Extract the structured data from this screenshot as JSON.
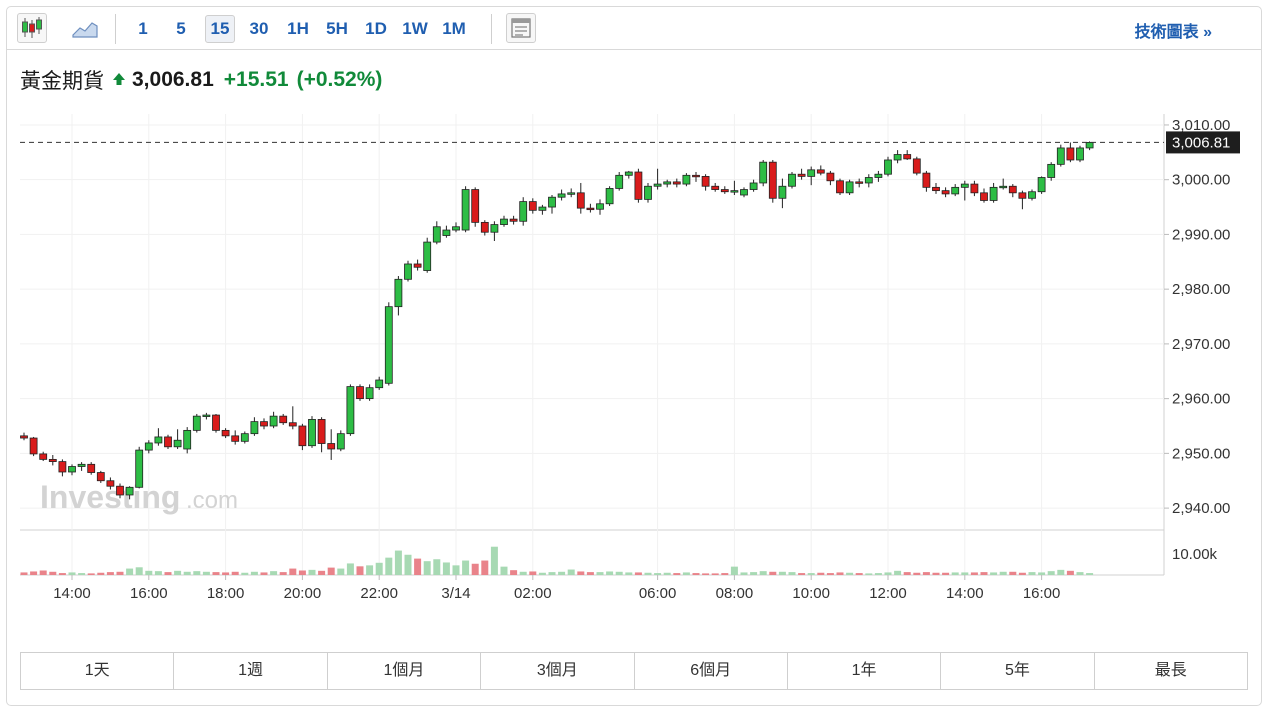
{
  "toolbar": {
    "icons": [
      "candlestick-icon",
      "area-chart-icon",
      "layout-icon"
    ],
    "timeframes": [
      "1",
      "5",
      "15",
      "30",
      "1H",
      "5H",
      "1D",
      "1W",
      "1M"
    ],
    "active_timeframe": "15",
    "tech_link": "技術圖表 »"
  },
  "quote": {
    "name": "黃金期貨",
    "direction": "up",
    "price": "3,006.81",
    "change": "+15.51",
    "change_pct": "(+0.52%)"
  },
  "watermark": {
    "main": "Investing",
    "suffix": ".com"
  },
  "colors": {
    "up": "#2dbd45",
    "down": "#d91c1c",
    "vol_up": "#a7d9b3",
    "vol_down": "#e9838a",
    "link": "#1f5eb0",
    "change": "#118a3a"
  },
  "chart_data": {
    "type": "candlestick",
    "interval": "15",
    "ylim": [
      2936,
      3012
    ],
    "y_ticks": [
      3010,
      3000,
      2990,
      2980,
      2970,
      2960,
      2950,
      2940
    ],
    "y_tick_labels": [
      "3,010.00",
      "3,000.00",
      "2,990.00",
      "2,980.00",
      "2,970.00",
      "2,960.00",
      "2,950.00",
      "2,940.00"
    ],
    "last_price": 3006.81,
    "last_price_label": "3,006.81",
    "x_tick_labels": [
      "14:00",
      "16:00",
      "18:00",
      "20:00",
      "22:00",
      "3/14",
      "02:00",
      "06:00",
      "08:00",
      "10:00",
      "12:00",
      "14:00",
      "16:00"
    ],
    "x_tick_index": [
      5,
      13,
      21,
      29,
      37,
      45,
      53,
      66,
      74,
      82,
      90,
      98,
      106
    ],
    "volume_label": "10.00k",
    "volume_max": 14000,
    "candles": [
      [
        2953.2,
        2953.8,
        2952.4,
        2952.8
      ],
      [
        2952.8,
        2953.0,
        2949.5,
        2949.9
      ],
      [
        2949.9,
        2950.3,
        2948.6,
        2948.9
      ],
      [
        2948.9,
        2949.7,
        2947.8,
        2948.5
      ],
      [
        2948.5,
        2948.9,
        2945.8,
        2946.6
      ],
      [
        2946.6,
        2948.0,
        2946.0,
        2947.6
      ],
      [
        2947.6,
        2948.4,
        2946.8,
        2948.0
      ],
      [
        2948.0,
        2948.4,
        2946.1,
        2946.5
      ],
      [
        2946.5,
        2946.8,
        2944.6,
        2945.0
      ],
      [
        2945.0,
        2945.6,
        2943.4,
        2944.0
      ],
      [
        2944.0,
        2944.5,
        2941.8,
        2942.4
      ],
      [
        2942.4,
        2944.0,
        2941.6,
        2943.8
      ],
      [
        2943.8,
        2951.2,
        2943.6,
        2950.6
      ],
      [
        2950.6,
        2952.4,
        2950.0,
        2951.9
      ],
      [
        2951.9,
        2954.6,
        2951.4,
        2953.0
      ],
      [
        2953.0,
        2953.4,
        2950.8,
        2951.2
      ],
      [
        2951.2,
        2954.4,
        2950.8,
        2952.4
      ],
      [
        2950.8,
        2954.8,
        2950.0,
        2954.2
      ],
      [
        2954.2,
        2957.2,
        2953.8,
        2956.8
      ],
      [
        2956.8,
        2957.4,
        2956.2,
        2957.0
      ],
      [
        2957.0,
        2957.2,
        2953.8,
        2954.2
      ],
      [
        2954.2,
        2954.6,
        2952.8,
        2953.2
      ],
      [
        2953.2,
        2954.2,
        2951.6,
        2952.2
      ],
      [
        2952.2,
        2954.0,
        2951.8,
        2953.6
      ],
      [
        2953.6,
        2956.6,
        2953.2,
        2955.8
      ],
      [
        2955.8,
        2956.4,
        2954.4,
        2955.0
      ],
      [
        2955.0,
        2957.6,
        2954.6,
        2956.8
      ],
      [
        2956.8,
        2957.2,
        2955.2,
        2955.6
      ],
      [
        2955.6,
        2958.6,
        2954.4,
        2955.0
      ],
      [
        2955.0,
        2955.4,
        2950.6,
        2951.4
      ],
      [
        2951.4,
        2956.8,
        2951.0,
        2956.2
      ],
      [
        2956.2,
        2956.6,
        2950.2,
        2951.8
      ],
      [
        2951.8,
        2954.4,
        2948.8,
        2950.8
      ],
      [
        2950.8,
        2954.2,
        2950.4,
        2953.6
      ],
      [
        2953.6,
        2962.6,
        2953.2,
        2962.2
      ],
      [
        2962.2,
        2962.6,
        2959.6,
        2960.0
      ],
      [
        2960.0,
        2962.6,
        2959.6,
        2962.0
      ],
      [
        2962.0,
        2964.0,
        2961.6,
        2963.4
      ],
      [
        2962.8,
        2977.6,
        2962.4,
        2976.8
      ],
      [
        2976.8,
        2982.4,
        2975.2,
        2981.8
      ],
      [
        2981.8,
        2985.2,
        2981.4,
        2984.6
      ],
      [
        2984.6,
        2985.4,
        2983.4,
        2984.0
      ],
      [
        2983.4,
        2989.4,
        2983.0,
        2988.6
      ],
      [
        2988.6,
        2992.4,
        2988.2,
        2991.4
      ],
      [
        2989.8,
        2991.6,
        2989.4,
        2990.8
      ],
      [
        2990.8,
        2992.2,
        2990.4,
        2991.4
      ],
      [
        2990.8,
        2998.8,
        2990.4,
        2998.2
      ],
      [
        2998.2,
        2998.6,
        2991.4,
        2992.2
      ],
      [
        2992.2,
        2992.6,
        2989.8,
        2990.4
      ],
      [
        2990.4,
        2992.4,
        2988.8,
        2991.8
      ],
      [
        2991.8,
        2993.4,
        2991.4,
        2992.8
      ],
      [
        2992.8,
        2993.4,
        2991.8,
        2992.4
      ],
      [
        2992.4,
        2996.8,
        2991.6,
        2996.0
      ],
      [
        2996.0,
        2996.6,
        2993.8,
        2994.4
      ],
      [
        2994.4,
        2995.4,
        2993.6,
        2995.0
      ],
      [
        2995.0,
        2997.2,
        2993.8,
        2996.8
      ],
      [
        2996.8,
        2998.2,
        2996.2,
        2997.4
      ],
      [
        2997.4,
        2998.4,
        2996.8,
        2997.6
      ],
      [
        2997.6,
        2999.4,
        2993.8,
        2994.8
      ],
      [
        2994.8,
        2995.6,
        2994.0,
        2994.6
      ],
      [
        2994.6,
        2996.4,
        2993.6,
        2995.6
      ],
      [
        2995.6,
        2998.8,
        2995.2,
        2998.4
      ],
      [
        2998.4,
        3001.4,
        2998.0,
        3000.8
      ],
      [
        3000.8,
        3001.6,
        3000.2,
        3001.4
      ],
      [
        3001.4,
        3002.0,
        2995.8,
        2996.4
      ],
      [
        2996.4,
        2999.4,
        2995.8,
        2998.8
      ],
      [
        2998.8,
        3002.0,
        2998.2,
        2999.2
      ],
      [
        2999.2,
        3000.0,
        2998.6,
        2999.6
      ],
      [
        2999.6,
        3000.2,
        2998.6,
        2999.2
      ],
      [
        2999.2,
        3001.2,
        2998.8,
        3000.8
      ],
      [
        3000.8,
        3001.4,
        2999.6,
        3000.6
      ],
      [
        3000.6,
        3001.0,
        2998.0,
        2998.8
      ],
      [
        2998.8,
        2999.4,
        2997.8,
        2998.2
      ],
      [
        2998.2,
        2998.8,
        2997.4,
        2997.8
      ],
      [
        2997.8,
        2999.8,
        2997.2,
        2998.0
      ],
      [
        2997.2,
        2998.6,
        2996.8,
        2998.2
      ],
      [
        2998.2,
        3000.0,
        2997.8,
        2999.4
      ],
      [
        2999.4,
        3003.6,
        2998.8,
        3003.2
      ],
      [
        3003.2,
        3003.6,
        2995.8,
        2996.6
      ],
      [
        2996.6,
        3000.2,
        2994.8,
        2998.8
      ],
      [
        2998.8,
        3001.4,
        2998.4,
        3001.0
      ],
      [
        3001.0,
        3002.0,
        3000.0,
        3000.6
      ],
      [
        3000.6,
        3002.4,
        2999.0,
        3001.8
      ],
      [
        3001.8,
        3002.6,
        3000.8,
        3001.2
      ],
      [
        3001.2,
        3001.6,
        2999.0,
        2999.8
      ],
      [
        2999.8,
        3000.2,
        2997.2,
        2997.6
      ],
      [
        2997.6,
        3000.0,
        2997.2,
        2999.6
      ],
      [
        2999.6,
        3000.2,
        2998.6,
        2999.4
      ],
      [
        2999.4,
        3001.0,
        2998.6,
        3000.4
      ],
      [
        3000.4,
        3001.6,
        2999.6,
        3001.0
      ],
      [
        3001.0,
        3004.2,
        3000.6,
        3003.6
      ],
      [
        3003.6,
        3005.4,
        3003.0,
        3004.6
      ],
      [
        3004.6,
        3005.4,
        3003.6,
        3003.8
      ],
      [
        3003.8,
        3004.2,
        3000.8,
        3001.2
      ],
      [
        3001.2,
        3001.6,
        2997.8,
        2998.6
      ],
      [
        2998.6,
        2999.4,
        2997.4,
        2998.0
      ],
      [
        2998.0,
        2998.6,
        2996.8,
        2997.4
      ],
      [
        2997.4,
        2999.2,
        2997.0,
        2998.6
      ],
      [
        2998.6,
        2999.8,
        2996.2,
        2999.2
      ],
      [
        2999.2,
        2999.8,
        2997.0,
        2997.6
      ],
      [
        2997.6,
        2998.4,
        2995.8,
        2996.2
      ],
      [
        2996.2,
        2999.4,
        2995.8,
        2998.6
      ],
      [
        2998.6,
        3000.2,
        2998.2,
        2998.8
      ],
      [
        2998.8,
        2999.2,
        2996.8,
        2997.6
      ],
      [
        2997.6,
        2998.0,
        2994.6,
        2996.6
      ],
      [
        2996.6,
        2998.2,
        2996.2,
        2997.8
      ],
      [
        2997.8,
        3000.6,
        2997.4,
        3000.4
      ],
      [
        3000.4,
        3003.2,
        2999.8,
        3002.8
      ],
      [
        3002.8,
        3006.4,
        3002.4,
        3005.8
      ],
      [
        3005.8,
        3006.8,
        3003.2,
        3003.6
      ],
      [
        3003.6,
        3006.2,
        3003.2,
        3005.8
      ],
      [
        3005.8,
        3007.0,
        3005.4,
        3006.81
      ]
    ],
    "volumes": [
      800,
      1100,
      1400,
      1000,
      600,
      800,
      600,
      500,
      700,
      900,
      1000,
      2000,
      2400,
      1300,
      1200,
      900,
      1300,
      1000,
      1200,
      1000,
      900,
      800,
      1000,
      700,
      1000,
      800,
      1200,
      900,
      2000,
      1400,
      1600,
      1300,
      2300,
      2000,
      3600,
      2700,
      3000,
      3800,
      5400,
      7600,
      6300,
      5100,
      4300,
      4900,
      3900,
      3000,
      4500,
      3500,
      4500,
      8800,
      2600,
      1500,
      1000,
      1100,
      700,
      900,
      1000,
      1700,
      1100,
      900,
      900,
      1100,
      1000,
      800,
      800,
      700,
      600,
      700,
      600,
      800,
      600,
      500,
      500,
      600,
      2600,
      800,
      900,
      1200,
      1000,
      1000,
      900,
      600,
      600,
      700,
      600,
      800,
      700,
      600,
      500,
      600,
      800,
      1300,
      900,
      700,
      900,
      700,
      700,
      800,
      800,
      800,
      900,
      800,
      1000,
      1000,
      700,
      900,
      800,
      1200,
      1600,
      1300,
      900,
      600
    ]
  },
  "range_buttons": [
    "1天",
    "1週",
    "1個月",
    "3個月",
    "6個月",
    "1年",
    "5年",
    "最長"
  ]
}
